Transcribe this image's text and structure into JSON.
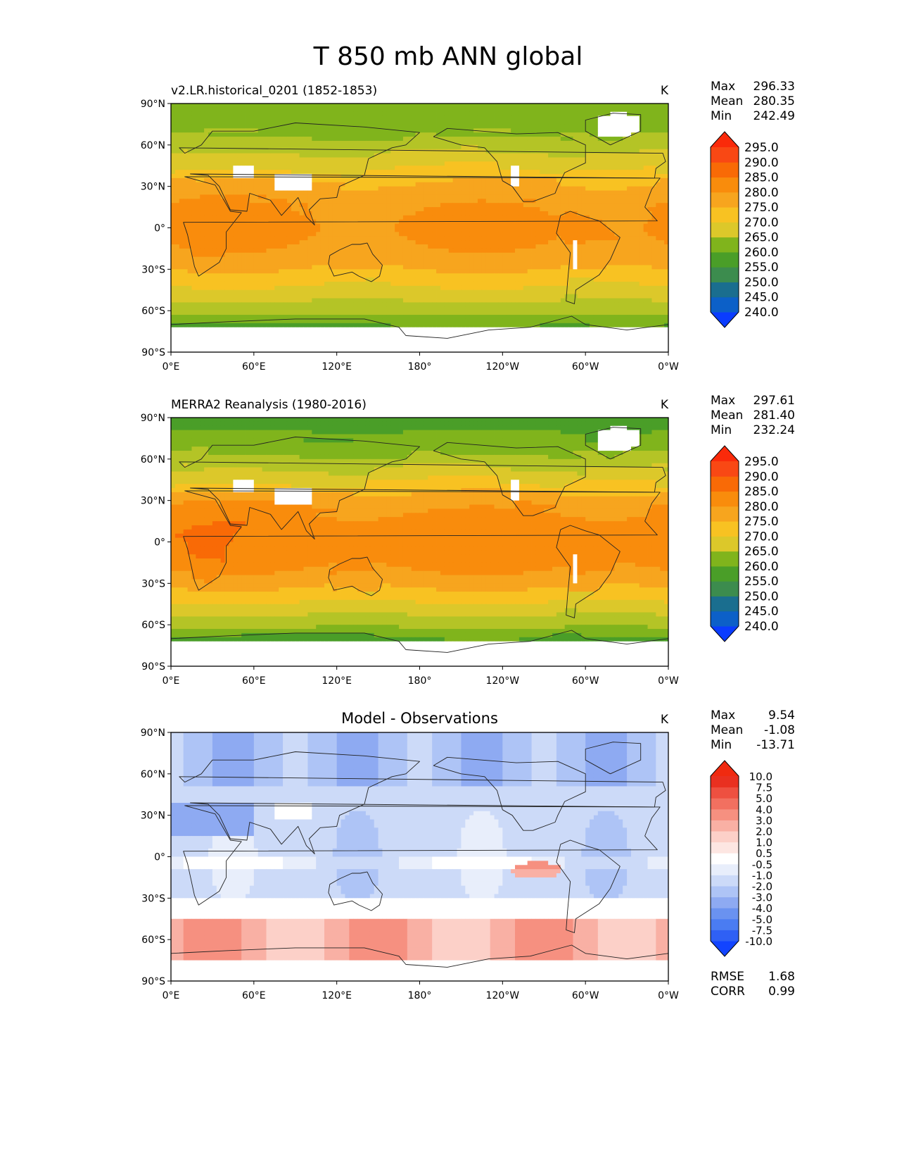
{
  "figure_title": "T 850 mb ANN global",
  "colors": {
    "absolute": [
      "#0a3cff",
      "#0c60c8",
      "#1a6e8f",
      "#3c8c4e",
      "#4a9e28",
      "#80b41c",
      "#b4c426",
      "#dcc82a",
      "#f8c222",
      "#f7a51e",
      "#f98c0c",
      "#f96a06",
      "#f94814",
      "#fa2a0a"
    ],
    "diff": [
      "#1244ff",
      "#2f60f5",
      "#4a7cf2",
      "#6a92f0",
      "#8eaaf2",
      "#aec4f6",
      "#ccdaf8",
      "#e8eefb",
      "#ffffff",
      "#fde6e2",
      "#fcd0c8",
      "#f9b0a4",
      "#f69080",
      "#f27060",
      "#ee5040",
      "#e93020",
      "#f02a10"
    ]
  },
  "chart_data": [
    {
      "type": "heatmap",
      "title": "v2.LR.historical_0201 (1852-1853)",
      "units": "K",
      "stats": {
        "max": "296.33",
        "mean": "280.35",
        "min": "242.49"
      },
      "stat_labels": {
        "max": "Max",
        "mean": "Mean",
        "min": "Min"
      },
      "field": {
        "base": 260,
        "equator_gain": 25,
        "land_bias": 0,
        "ocean_gain": 3
      },
      "levels": [
        "240.0",
        "245.0",
        "250.0",
        "255.0",
        "260.0",
        "265.0",
        "270.0",
        "275.0",
        "280.0",
        "285.0",
        "290.0",
        "295.0"
      ],
      "level_values": [
        240,
        245,
        250,
        255,
        260,
        265,
        270,
        275,
        280,
        285,
        290,
        295
      ],
      "x_ticks": [
        "0°E",
        "60°E",
        "120°E",
        "180°",
        "120°W",
        "60°W",
        "0°W"
      ],
      "y_ticks": [
        "90°N",
        "60°N",
        "30°N",
        "0°",
        "30°S",
        "60°S",
        "90°S"
      ],
      "xlim": [
        0,
        360
      ],
      "ylim": [
        -90,
        90
      ]
    },
    {
      "type": "heatmap",
      "title": "MERRA2 Reanalysis (1980-2016)",
      "units": "K",
      "stats": {
        "max": "297.61",
        "mean": "281.40",
        "min": "232.24"
      },
      "stat_labels": {
        "max": "Max",
        "mean": "Mean",
        "min": "Min"
      },
      "field": {
        "base": 258,
        "equator_gain": 29,
        "land_bias": 1,
        "ocean_gain": 4
      },
      "levels": [
        "240.0",
        "245.0",
        "250.0",
        "255.0",
        "260.0",
        "265.0",
        "270.0",
        "275.0",
        "280.0",
        "285.0",
        "290.0",
        "295.0"
      ],
      "level_values": [
        240,
        245,
        250,
        255,
        260,
        265,
        270,
        275,
        280,
        285,
        290,
        295
      ],
      "x_ticks": [
        "0°E",
        "60°E",
        "120°E",
        "180°",
        "120°W",
        "60°W",
        "0°W"
      ],
      "y_ticks": [
        "90°N",
        "60°N",
        "30°N",
        "0°",
        "30°S",
        "60°S",
        "90°S"
      ],
      "xlim": [
        0,
        360
      ],
      "ylim": [
        -90,
        90
      ]
    },
    {
      "type": "heatmap",
      "title": "Model - Observations",
      "units": "K",
      "stats": {
        "max": "9.54",
        "mean": "-1.08",
        "min": "-13.71"
      },
      "stat_labels": {
        "max": "Max",
        "mean": "Mean",
        "min": "Min"
      },
      "metrics": {
        "rmse_label": "RMSE",
        "rmse": "1.68",
        "corr_label": "CORR",
        "corr": "0.99"
      },
      "levels": [
        "-10.0",
        "-7.5",
        "-5.0",
        "-4.0",
        "-3.0",
        "-2.0",
        "-1.0",
        "-0.5",
        "0.5",
        "1.0",
        "2.0",
        "3.0",
        "4.0",
        "5.0",
        "7.5",
        "10.0"
      ],
      "level_values": [
        -10,
        -7.5,
        -5,
        -4,
        -3,
        -2,
        -1,
        -0.5,
        0.5,
        1,
        2,
        3,
        4,
        5,
        7.5,
        10
      ],
      "x_ticks": [
        "0°E",
        "60°E",
        "120°E",
        "180°",
        "120°W",
        "60°W",
        "0°W"
      ],
      "y_ticks": [
        "90°N",
        "60°N",
        "30°N",
        "0°",
        "30°S",
        "60°S",
        "90°S"
      ],
      "xlim": [
        0,
        360
      ],
      "ylim": [
        -90,
        90
      ]
    }
  ]
}
